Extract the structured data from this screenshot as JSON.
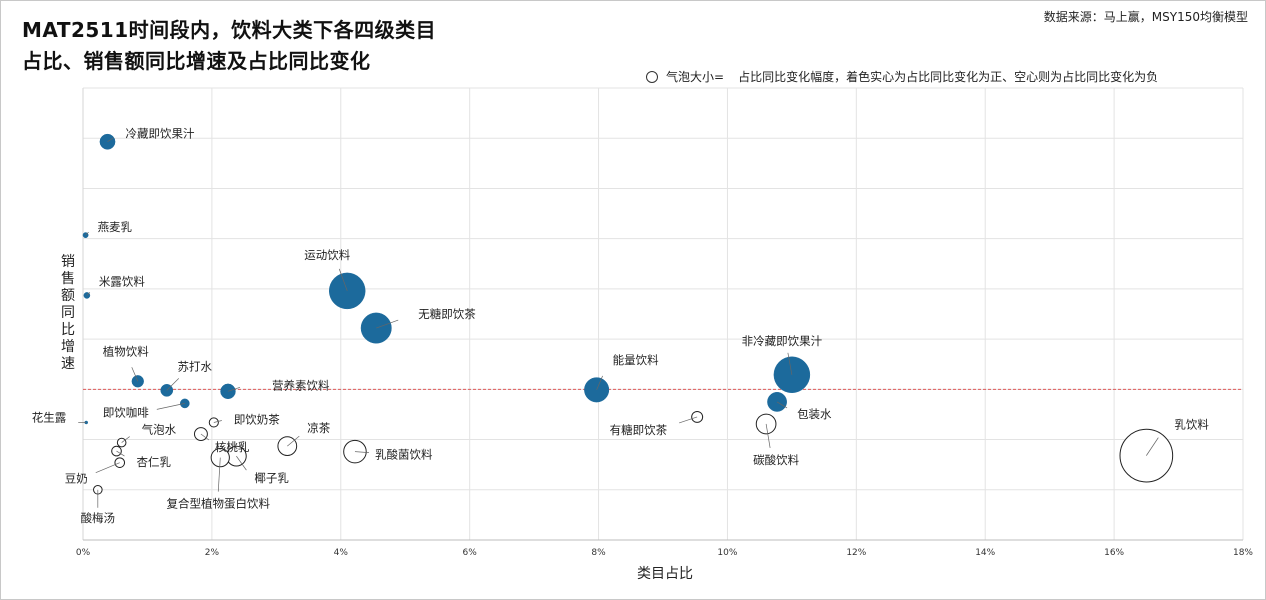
{
  "source": "数据来源：马上赢，MSY150均衡模型",
  "chart_data": {
    "type": "scatter",
    "title": "MAT2511时间段内，饮料大类下各四级类目",
    "subtitle": "占比、销售额同比增速及占比同比变化",
    "xlabel": "类目占比",
    "ylabel": "销售额同比增速",
    "bubble_legend_key": "气泡大小=",
    "bubble_legend_text": "占比同比变化幅度，着色实心为占比同比变化为正、空心则为占比同比变化为负",
    "xlim": [
      0,
      18
    ],
    "ylim": [
      0,
      9
    ],
    "x_ticks": [
      "0%",
      "2%",
      "4%",
      "6%",
      "8%",
      "10%",
      "12%",
      "14%",
      "16%",
      "18%"
    ],
    "reference_line_y": 3,
    "grid": true,
    "colors": {
      "positive": "#1c6a9c",
      "negative_fill": "#ffffff",
      "negative_stroke": "#222222",
      "reference": "#e05a5a",
      "grid": "#e3e3e3"
    },
    "points": [
      {
        "name": "冷藏即饮果汁",
        "x": 0.38,
        "y": 7.93,
        "size": 0.25,
        "sign": "positive"
      },
      {
        "name": "燕麦乳",
        "x": 0.04,
        "y": 6.07,
        "size": 0.03,
        "sign": "positive"
      },
      {
        "name": "米露饮料",
        "x": 0.06,
        "y": 4.87,
        "size": 0.04,
        "sign": "positive"
      },
      {
        "name": "运动饮料",
        "x": 4.1,
        "y": 4.96,
        "size": 1.4,
        "sign": "positive"
      },
      {
        "name": "无糖即饮茶",
        "x": 4.55,
        "y": 4.22,
        "size": 1.0,
        "sign": "positive"
      },
      {
        "name": "植物饮料",
        "x": 0.85,
        "y": 3.16,
        "size": 0.15,
        "sign": "positive"
      },
      {
        "name": "苏打水",
        "x": 1.3,
        "y": 2.98,
        "size": 0.16,
        "sign": "positive"
      },
      {
        "name": "营养素饮料",
        "x": 2.25,
        "y": 2.96,
        "size": 0.24,
        "sign": "positive"
      },
      {
        "name": "即饮咖啡",
        "x": 1.58,
        "y": 2.72,
        "size": 0.09,
        "sign": "positive"
      },
      {
        "name": "花生露",
        "x": 0.05,
        "y": 2.34,
        "size": 0.01,
        "sign": "positive"
      },
      {
        "name": "即饮奶茶",
        "x": 2.03,
        "y": 2.34,
        "size": 0.09,
        "sign": "negative"
      },
      {
        "name": "气泡水",
        "x": 0.6,
        "y": 1.94,
        "size": 0.08,
        "sign": "negative"
      },
      {
        "name": "核桃乳",
        "x": 1.83,
        "y": 2.11,
        "size": 0.18,
        "sign": "negative"
      },
      {
        "name": "杏仁乳",
        "x": 0.52,
        "y": 1.77,
        "size": 0.1,
        "sign": "negative"
      },
      {
        "name": "豆奶",
        "x": 0.57,
        "y": 1.54,
        "size": 0.1,
        "sign": "negative"
      },
      {
        "name": "凉茶",
        "x": 3.17,
        "y": 1.87,
        "size": 0.38,
        "sign": "negative"
      },
      {
        "name": "椰子乳",
        "x": 2.38,
        "y": 1.67,
        "size": 0.42,
        "sign": "negative"
      },
      {
        "name": "复合型植物蛋白饮料",
        "x": 2.13,
        "y": 1.64,
        "size": 0.36,
        "sign": "negative"
      },
      {
        "name": "乳酸菌饮料",
        "x": 4.22,
        "y": 1.76,
        "size": 0.55,
        "sign": "negative"
      },
      {
        "name": "酸梅汤",
        "x": 0.23,
        "y": 1.0,
        "size": 0.08,
        "sign": "negative"
      },
      {
        "name": "能量饮料",
        "x": 7.97,
        "y": 2.99,
        "size": 0.65,
        "sign": "positive"
      },
      {
        "name": "有糖即饮茶",
        "x": 9.53,
        "y": 2.45,
        "size": 0.13,
        "sign": "negative"
      },
      {
        "name": "非冷藏即饮果汁",
        "x": 11.0,
        "y": 3.29,
        "size": 1.4,
        "sign": "positive"
      },
      {
        "name": "包装水",
        "x": 10.77,
        "y": 2.75,
        "size": 0.4,
        "sign": "positive"
      },
      {
        "name": "碳酸饮料",
        "x": 10.6,
        "y": 2.31,
        "size": 0.42,
        "sign": "negative"
      },
      {
        "name": "乳饮料",
        "x": 16.5,
        "y": 1.68,
        "size": 3.0,
        "sign": "negative"
      }
    ]
  }
}
